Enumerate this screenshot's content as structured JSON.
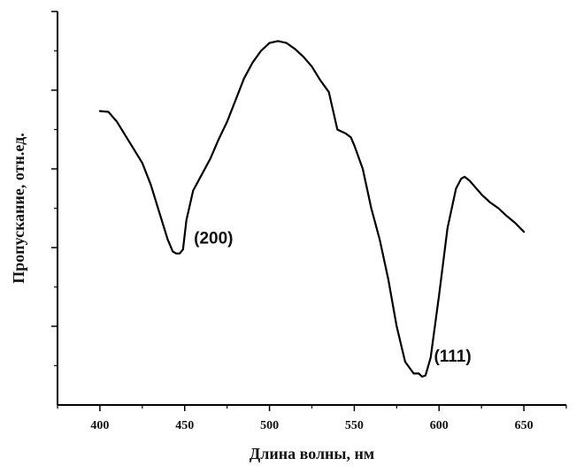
{
  "chart_data": {
    "type": "line",
    "title": "",
    "xlabel": "Длина волны, нм",
    "ylabel": "Пропускание, отн.ед.",
    "xlim": [
      375,
      675
    ],
    "ylim": [
      0,
      1
    ],
    "y_tick_labels_shown": false,
    "y_major_ticks": [
      0.2,
      0.4,
      0.6,
      0.8,
      1.0
    ],
    "x_ticks": [
      400,
      450,
      500,
      550,
      600,
      650
    ],
    "x_tick_labels": [
      "400",
      "450",
      "500",
      "550",
      "600",
      "650"
    ],
    "grid": false,
    "line_color": "#000000",
    "series": [
      {
        "x": [
          400,
          405,
          410,
          415,
          420,
          425,
          430,
          435,
          440,
          443,
          445,
          447,
          449,
          451,
          455,
          460,
          465,
          470,
          475,
          480,
          485,
          490,
          495,
          500,
          505,
          510,
          515,
          520,
          525,
          530,
          535,
          540,
          545,
          548,
          550,
          555,
          560,
          565,
          570,
          575,
          580,
          585,
          588,
          590,
          592,
          595,
          600,
          605,
          610,
          613,
          615,
          618,
          620,
          625,
          630,
          635,
          640,
          645,
          650
        ],
        "y": [
          0.747,
          0.745,
          0.72,
          0.685,
          0.65,
          0.615,
          0.56,
          0.49,
          0.42,
          0.39,
          0.385,
          0.385,
          0.395,
          0.47,
          0.545,
          0.585,
          0.625,
          0.675,
          0.72,
          0.775,
          0.83,
          0.87,
          0.9,
          0.92,
          0.925,
          0.92,
          0.905,
          0.885,
          0.86,
          0.825,
          0.795,
          0.7,
          0.69,
          0.68,
          0.66,
          0.6,
          0.5,
          0.42,
          0.32,
          0.2,
          0.11,
          0.08,
          0.08,
          0.072,
          0.075,
          0.12,
          0.28,
          0.45,
          0.55,
          0.575,
          0.58,
          0.57,
          0.56,
          0.535,
          0.515,
          0.5,
          0.48,
          0.462,
          0.44
        ]
      }
    ],
    "annotations": [
      {
        "text": "(200)",
        "x": 467,
        "y": 0.41
      },
      {
        "text": "(111)",
        "x": 608,
        "y": 0.11
      }
    ]
  }
}
